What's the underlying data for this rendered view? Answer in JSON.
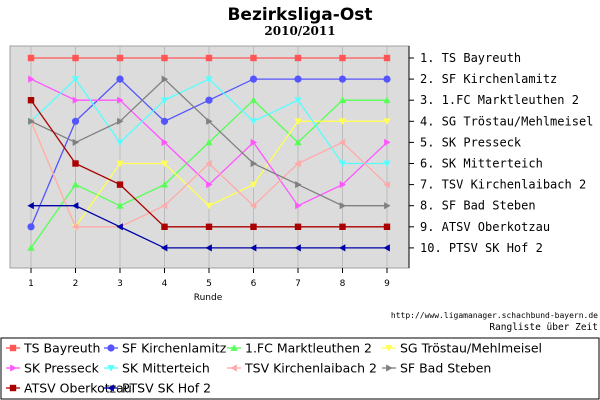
{
  "chart_data": {
    "type": "line",
    "title": "Bezirksliga-Ost",
    "subtitle": "2010/2011",
    "xlabel": "Runde",
    "ylabel": "",
    "x": [
      1,
      2,
      3,
      4,
      5,
      6,
      7,
      8,
      9
    ],
    "ylim": [
      1,
      10
    ],
    "y_inverted": true,
    "grid": true,
    "rank_labels": [
      "1. TS Bayreuth",
      "2. SF Kirchenlamitz",
      "3. 1.FC Marktleuthen 2",
      "4. SG Tröstau/Mehlmeisel",
      "5. SK Presseck",
      "6. SK Mitterteich",
      "7. TSV Kirchenlaibach 2",
      "8. SF Bad Steben",
      "9. ATSV Oberkotzau",
      "10. PTSV SK Hof 2"
    ],
    "source": "http://www.ligamanager.schachbund-bayern.de",
    "note": "Rangliste über Zeit",
    "series": [
      {
        "name": "TS Bayreuth",
        "color": "#ff5555",
        "marker": "square",
        "values": [
          1,
          1,
          1,
          1,
          1,
          1,
          1,
          1,
          1
        ]
      },
      {
        "name": "SF Kirchenlamitz",
        "color": "#5555ff",
        "marker": "circle",
        "values": [
          9,
          4,
          2,
          4,
          3,
          2,
          2,
          2,
          2
        ]
      },
      {
        "name": "1.FC Marktleuthen 2",
        "color": "#55ff55",
        "marker": "triangle-up",
        "values": [
          10,
          7,
          8,
          7,
          5,
          3,
          5,
          3,
          3
        ]
      },
      {
        "name": "SG Tröstau/Mehlmeisel",
        "color": "#ffff55",
        "marker": "triangle-down",
        "values": [
          4,
          9,
          6,
          6,
          8,
          7,
          4,
          4,
          4
        ]
      },
      {
        "name": "SK Presseck",
        "color": "#ff55ff",
        "marker": "triangle-right",
        "values": [
          2,
          3,
          3,
          5,
          7,
          5,
          8,
          7,
          5
        ]
      },
      {
        "name": "SK Mitterteich",
        "color": "#55ffff",
        "marker": "triangle-down",
        "values": [
          4,
          2,
          5,
          3,
          2,
          4,
          3,
          6,
          6
        ]
      },
      {
        "name": "TSV Kirchenlaibach 2",
        "color": "#ffaaaa",
        "marker": "triangle-left",
        "values": [
          4,
          9,
          9,
          8,
          6,
          8,
          6,
          5,
          7
        ]
      },
      {
        "name": "SF Bad Steben",
        "color": "#808080",
        "marker": "triangle-right",
        "values": [
          4,
          5,
          4,
          2,
          4,
          6,
          7,
          8,
          8
        ]
      },
      {
        "name": "ATSV Oberkotzau",
        "color": "#aa0000",
        "marker": "square",
        "values": [
          3,
          6,
          7,
          9,
          9,
          9,
          9,
          9,
          9
        ]
      },
      {
        "name": "PTSV SK Hof 2",
        "color": "#0000aa",
        "marker": "triangle-left",
        "values": [
          8,
          8,
          9,
          10,
          10,
          10,
          10,
          10,
          10
        ]
      }
    ]
  }
}
